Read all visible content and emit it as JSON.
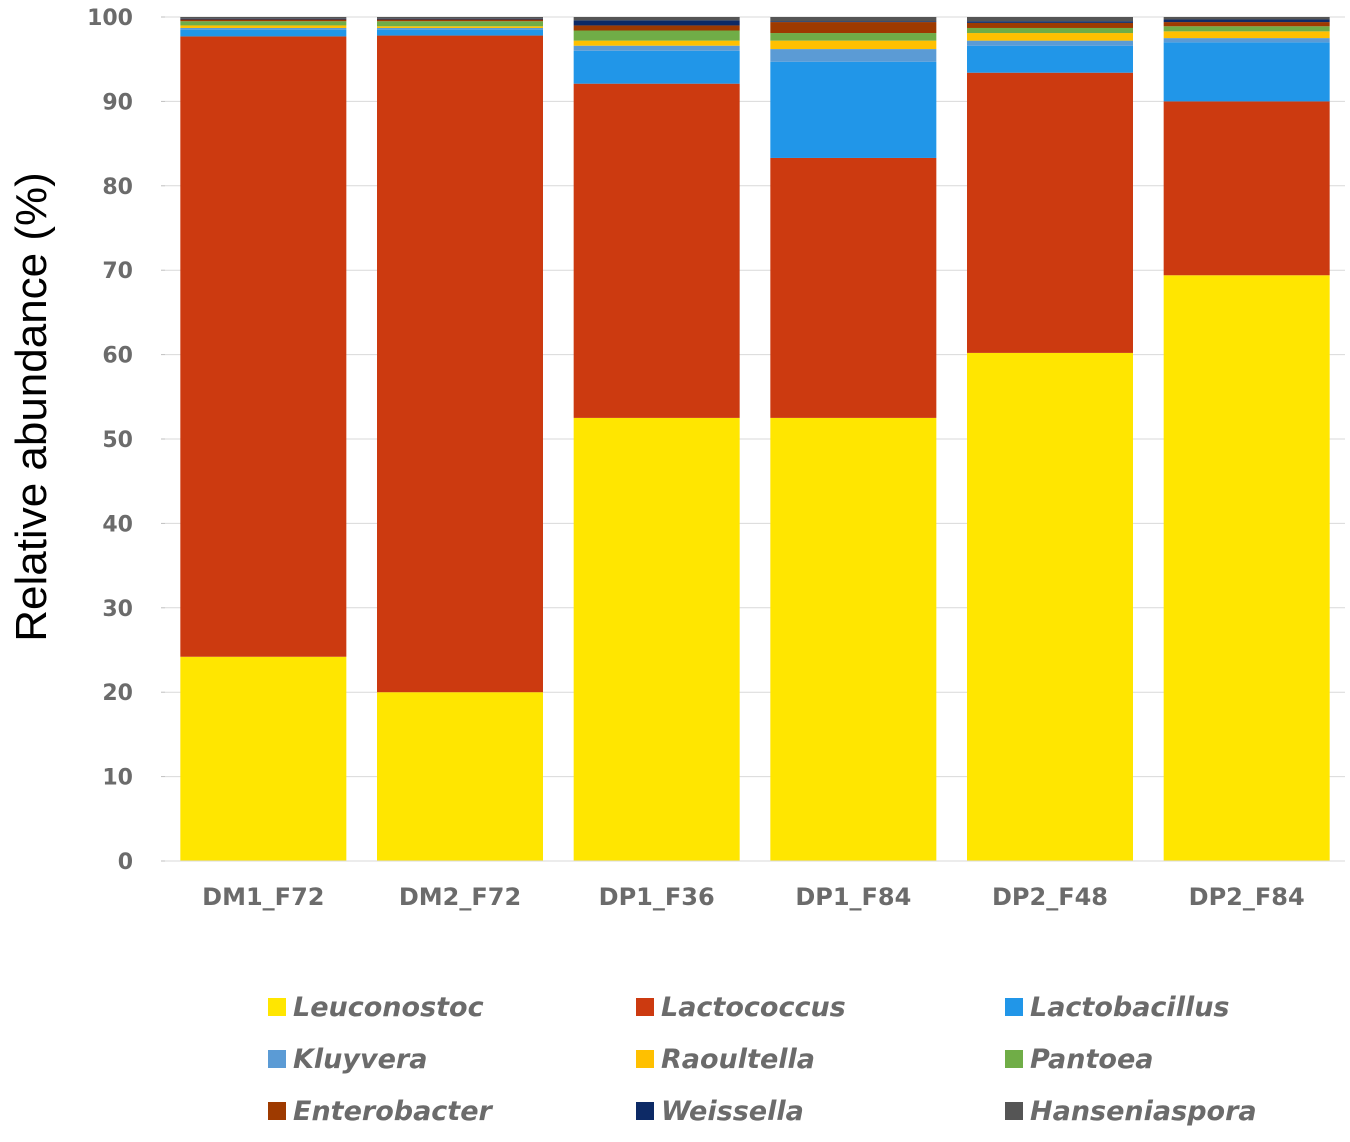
{
  "chart_data": {
    "type": "bar",
    "stacked": true,
    "title": "",
    "xlabel": "",
    "ylabel": "Relative abundance (%)",
    "ylim": [
      0,
      100
    ],
    "yticks": [
      0,
      10,
      20,
      30,
      40,
      50,
      60,
      70,
      80,
      90,
      100
    ],
    "grid": true,
    "legend_position": "bottom",
    "categories": [
      "DM1_F72",
      "DM2_F72",
      "DP1_F36",
      "DP1_F84",
      "DP2_F48",
      "DP2_F84"
    ],
    "series": [
      {
        "name": "Leuconostoc",
        "color": "#ffe600",
        "values": [
          24.2,
          20.0,
          52.5,
          52.5,
          60.2,
          69.4
        ]
      },
      {
        "name": "Lactococcus",
        "color": "#cc3a10",
        "values": [
          73.5,
          77.8,
          39.6,
          30.8,
          33.2,
          20.6
        ]
      },
      {
        "name": "Lactobacillus",
        "color": "#2196e8",
        "values": [
          0.8,
          0.7,
          3.9,
          11.4,
          3.2,
          7.0
        ]
      },
      {
        "name": "Kluyvera",
        "color": "#5b9bd5",
        "values": [
          0.2,
          0.2,
          0.6,
          1.5,
          0.6,
          0.5
        ]
      },
      {
        "name": "Raoultella",
        "color": "#ffc000",
        "values": [
          0.3,
          0.2,
          0.6,
          1.0,
          0.9,
          0.8
        ]
      },
      {
        "name": "Pantoea",
        "color": "#70ad47",
        "values": [
          0.5,
          0.6,
          1.2,
          0.9,
          0.6,
          0.6
        ]
      },
      {
        "name": "Enterobacter",
        "color": "#9e3a00",
        "values": [
          0.2,
          0.2,
          0.6,
          1.3,
          0.6,
          0.5
        ]
      },
      {
        "name": "Weissella",
        "color": "#0d2a66",
        "values": [
          0.1,
          0.1,
          0.6,
          0.1,
          0.2,
          0.3
        ]
      },
      {
        "name": "Hanseniaspora",
        "color": "#555555",
        "values": [
          0.2,
          0.2,
          0.4,
          0.5,
          0.5,
          0.3
        ]
      }
    ]
  }
}
